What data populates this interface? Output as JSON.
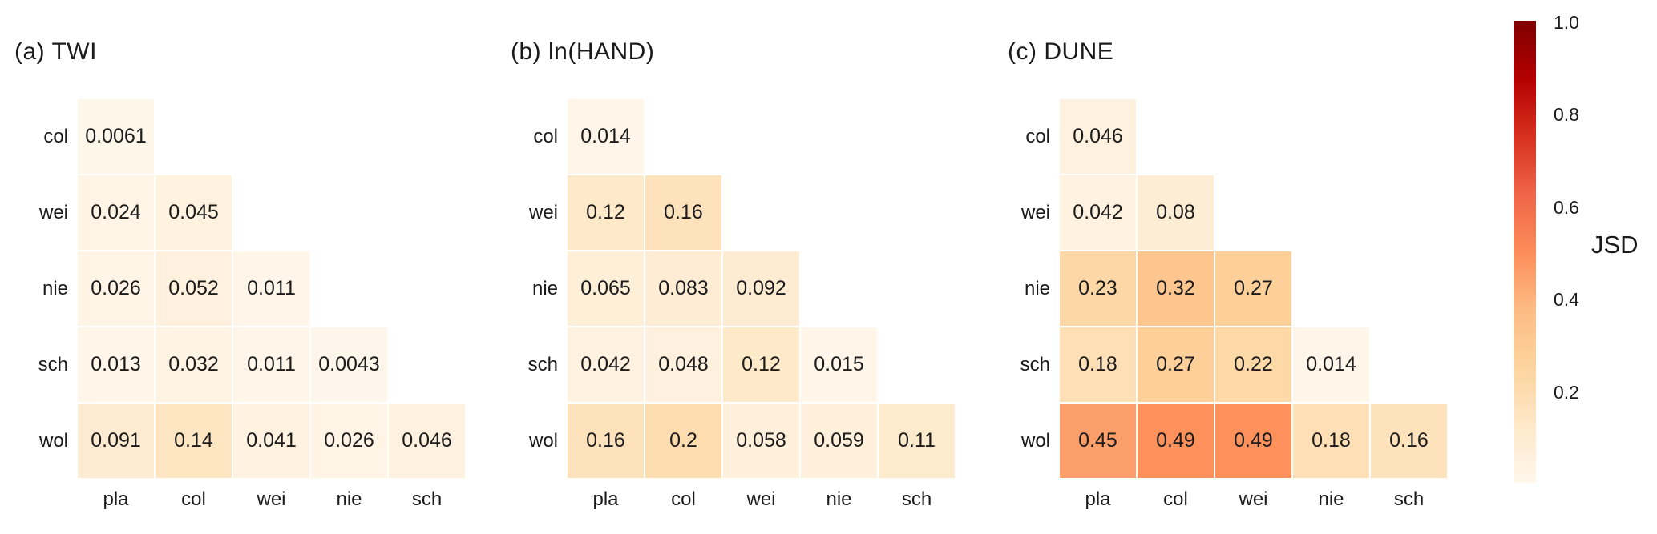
{
  "colorbar": {
    "label": "JSD",
    "vmin": 0.0,
    "vmax": 1.0,
    "colormap": "OrRd",
    "colormap_stops": [
      "#fff7ec",
      "#fee8c8",
      "#fdd49e",
      "#fdbb84",
      "#fc8d59",
      "#ef6548",
      "#d7301f",
      "#b30000",
      "#7f0000"
    ],
    "ticks": [
      {
        "label": "1.0",
        "value": 1.0
      },
      {
        "label": "0.8",
        "value": 0.8
      },
      {
        "label": "0.6",
        "value": 0.6
      },
      {
        "label": "0.4",
        "value": 0.4
      },
      {
        "label": "0.2",
        "value": 0.2
      }
    ],
    "position": "right"
  },
  "chart_data": [
    {
      "type": "heatmap",
      "title": "(a) TWI",
      "triangle": "lower",
      "rows": [
        "col",
        "wei",
        "nie",
        "sch",
        "wol"
      ],
      "columns": [
        "pla",
        "col",
        "wei",
        "nie",
        "sch"
      ],
      "values": [
        [
          0.0061,
          null,
          null,
          null,
          null
        ],
        [
          0.024,
          0.045,
          null,
          null,
          null
        ],
        [
          0.026,
          0.052,
          0.011,
          null,
          null
        ],
        [
          0.013,
          0.032,
          0.011,
          0.0043,
          null
        ],
        [
          0.091,
          0.14,
          0.041,
          0.026,
          0.046
        ]
      ]
    },
    {
      "type": "heatmap",
      "title": "(b) ln(HAND)",
      "triangle": "lower",
      "rows": [
        "col",
        "wei",
        "nie",
        "sch",
        "wol"
      ],
      "columns": [
        "pla",
        "col",
        "wei",
        "nie",
        "sch"
      ],
      "values": [
        [
          0.014,
          null,
          null,
          null,
          null
        ],
        [
          0.12,
          0.16,
          null,
          null,
          null
        ],
        [
          0.065,
          0.083,
          0.092,
          null,
          null
        ],
        [
          0.042,
          0.048,
          0.12,
          0.015,
          null
        ],
        [
          0.16,
          0.2,
          0.058,
          0.059,
          0.11
        ]
      ]
    },
    {
      "type": "heatmap",
      "title": "(c) DUNE",
      "triangle": "lower",
      "rows": [
        "col",
        "wei",
        "nie",
        "sch",
        "wol"
      ],
      "columns": [
        "pla",
        "col",
        "wei",
        "nie",
        "sch"
      ],
      "values": [
        [
          0.046,
          null,
          null,
          null,
          null
        ],
        [
          0.042,
          0.08,
          null,
          null,
          null
        ],
        [
          0.23,
          0.32,
          0.27,
          null,
          null
        ],
        [
          0.18,
          0.27,
          0.22,
          0.014,
          null
        ],
        [
          0.45,
          0.49,
          0.49,
          0.18,
          0.16
        ]
      ]
    }
  ]
}
